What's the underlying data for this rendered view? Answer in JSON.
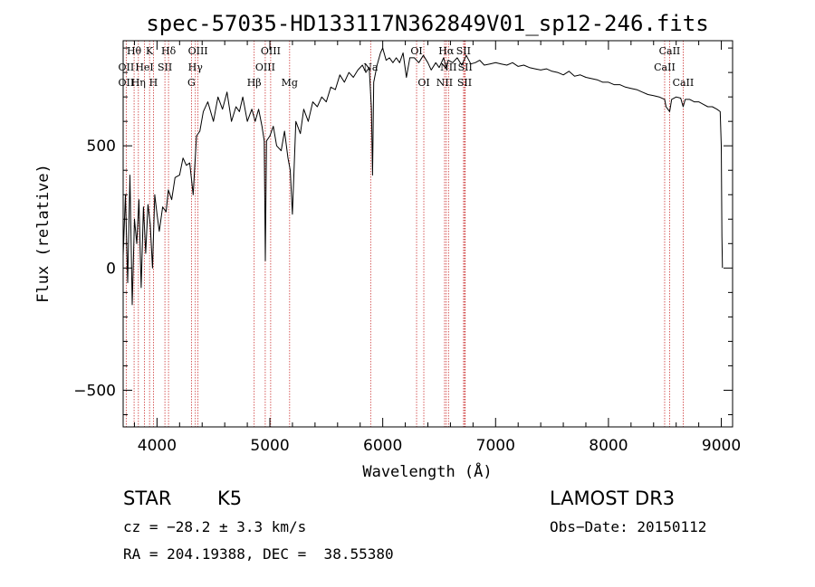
{
  "chart_data": {
    "type": "line",
    "title": "spec-57035-HD133117N362849V01_sp12-246.fits",
    "xlabel": "Wavelength (Å)",
    "ylabel": "Flux (relative)",
    "xlim": [
      3700,
      9100
    ],
    "ylim": [
      -650,
      930
    ],
    "xticks": [
      4000,
      5000,
      6000,
      7000,
      8000,
      9000
    ],
    "yticks": [
      -500,
      0,
      500
    ],
    "x_tick_labels": [
      "4000",
      "5000",
      "6000",
      "7000",
      "8000",
      "9000"
    ],
    "y_tick_labels": [
      "−500",
      "0",
      "500"
    ],
    "series": [
      {
        "name": "flux",
        "points": [
          [
            3700,
            50
          ],
          [
            3720,
            300
          ],
          [
            3740,
            -60
          ],
          [
            3760,
            380
          ],
          [
            3780,
            -150
          ],
          [
            3800,
            200
          ],
          [
            3820,
            100
          ],
          [
            3840,
            280
          ],
          [
            3860,
            -80
          ],
          [
            3880,
            250
          ],
          [
            3900,
            60
          ],
          [
            3920,
            260
          ],
          [
            3940,
            180
          ],
          [
            3960,
            0
          ],
          [
            3980,
            300
          ],
          [
            4000,
            220
          ],
          [
            4020,
            150
          ],
          [
            4050,
            250
          ],
          [
            4080,
            230
          ],
          [
            4100,
            320
          ],
          [
            4130,
            280
          ],
          [
            4160,
            370
          ],
          [
            4200,
            380
          ],
          [
            4230,
            450
          ],
          [
            4260,
            420
          ],
          [
            4290,
            430
          ],
          [
            4320,
            300
          ],
          [
            4350,
            540
          ],
          [
            4380,
            560
          ],
          [
            4410,
            640
          ],
          [
            4450,
            680
          ],
          [
            4500,
            600
          ],
          [
            4540,
            700
          ],
          [
            4580,
            650
          ],
          [
            4620,
            720
          ],
          [
            4660,
            600
          ],
          [
            4700,
            660
          ],
          [
            4730,
            640
          ],
          [
            4760,
            700
          ],
          [
            4800,
            600
          ],
          [
            4840,
            650
          ],
          [
            4870,
            600
          ],
          [
            4900,
            650
          ],
          [
            4930,
            580
          ],
          [
            4950,
            520
          ],
          [
            4960,
            30
          ],
          [
            4970,
            520
          ],
          [
            5000,
            540
          ],
          [
            5030,
            580
          ],
          [
            5060,
            500
          ],
          [
            5100,
            480
          ],
          [
            5130,
            560
          ],
          [
            5160,
            450
          ],
          [
            5180,
            400
          ],
          [
            5200,
            220
          ],
          [
            5230,
            600
          ],
          [
            5270,
            550
          ],
          [
            5300,
            650
          ],
          [
            5340,
            600
          ],
          [
            5380,
            680
          ],
          [
            5420,
            660
          ],
          [
            5460,
            700
          ],
          [
            5500,
            680
          ],
          [
            5540,
            740
          ],
          [
            5580,
            730
          ],
          [
            5620,
            790
          ],
          [
            5660,
            760
          ],
          [
            5700,
            800
          ],
          [
            5740,
            780
          ],
          [
            5780,
            810
          ],
          [
            5820,
            830
          ],
          [
            5850,
            800
          ],
          [
            5880,
            820
          ],
          [
            5900,
            650
          ],
          [
            5910,
            380
          ],
          [
            5920,
            760
          ],
          [
            5950,
            830
          ],
          [
            5980,
            880
          ],
          [
            6000,
            900
          ],
          [
            6030,
            850
          ],
          [
            6060,
            860
          ],
          [
            6090,
            840
          ],
          [
            6120,
            860
          ],
          [
            6150,
            840
          ],
          [
            6180,
            880
          ],
          [
            6210,
            780
          ],
          [
            6240,
            860
          ],
          [
            6280,
            860
          ],
          [
            6320,
            840
          ],
          [
            6360,
            870
          ],
          [
            6400,
            840
          ],
          [
            6430,
            810
          ],
          [
            6470,
            840
          ],
          [
            6500,
            820
          ],
          [
            6540,
            860
          ],
          [
            6562,
            820
          ],
          [
            6580,
            850
          ],
          [
            6620,
            840
          ],
          [
            6660,
            860
          ],
          [
            6700,
            830
          ],
          [
            6740,
            870
          ],
          [
            6780,
            835
          ],
          [
            6820,
            840
          ],
          [
            6860,
            850
          ],
          [
            6900,
            830
          ],
          [
            6950,
            835
          ],
          [
            7000,
            840
          ],
          [
            7050,
            835
          ],
          [
            7100,
            830
          ],
          [
            7150,
            840
          ],
          [
            7200,
            825
          ],
          [
            7250,
            830
          ],
          [
            7300,
            820
          ],
          [
            7350,
            815
          ],
          [
            7400,
            810
          ],
          [
            7450,
            815
          ],
          [
            7500,
            805
          ],
          [
            7550,
            800
          ],
          [
            7600,
            790
          ],
          [
            7650,
            805
          ],
          [
            7700,
            785
          ],
          [
            7750,
            790
          ],
          [
            7800,
            780
          ],
          [
            7850,
            775
          ],
          [
            7900,
            770
          ],
          [
            7950,
            760
          ],
          [
            8000,
            760
          ],
          [
            8050,
            750
          ],
          [
            8100,
            750
          ],
          [
            8150,
            740
          ],
          [
            8200,
            735
          ],
          [
            8250,
            730
          ],
          [
            8300,
            720
          ],
          [
            8350,
            710
          ],
          [
            8400,
            705
          ],
          [
            8450,
            700
          ],
          [
            8498,
            690
          ],
          [
            8510,
            660
          ],
          [
            8542,
            640
          ],
          [
            8560,
            690
          ],
          [
            8600,
            700
          ],
          [
            8640,
            695
          ],
          [
            8662,
            660
          ],
          [
            8680,
            690
          ],
          [
            8720,
            690
          ],
          [
            8760,
            680
          ],
          [
            8800,
            680
          ],
          [
            8840,
            670
          ],
          [
            8880,
            660
          ],
          [
            8920,
            660
          ],
          [
            8960,
            650
          ],
          [
            8990,
            640
          ],
          [
            9000,
            500
          ],
          [
            9005,
            130
          ],
          [
            9010,
            0
          ]
        ]
      }
    ],
    "spectral_lines": [
      {
        "label": "Hθ",
        "x": 3797,
        "row": 0
      },
      {
        "label": "OII",
        "x": 3727,
        "row": 1
      },
      {
        "label": "OII",
        "x": 3727,
        "row": 2
      },
      {
        "label": "K",
        "x": 3934,
        "row": 0
      },
      {
        "label": "HeI",
        "x": 3889,
        "row": 1
      },
      {
        "label": "Hη",
        "x": 3835,
        "row": 2
      },
      {
        "label": "H",
        "x": 3968,
        "row": 2
      },
      {
        "label": "Hδ",
        "x": 4102,
        "row": 0
      },
      {
        "label": "SII",
        "x": 4070,
        "row": 1
      },
      {
        "label": "OIII",
        "x": 4363,
        "row": 0
      },
      {
        "label": "Hγ",
        "x": 4340,
        "row": 1
      },
      {
        "label": "G",
        "x": 4305,
        "row": 2
      },
      {
        "label": "OIII",
        "x": 5007,
        "row": 0
      },
      {
        "label": "OIII",
        "x": 4959,
        "row": 1
      },
      {
        "label": "Hβ",
        "x": 4861,
        "row": 2
      },
      {
        "label": "Mg",
        "x": 5175,
        "row": 2
      },
      {
        "label": "Na",
        "x": 5893,
        "row": 1
      },
      {
        "label": "OI",
        "x": 6300,
        "row": 0
      },
      {
        "label": "OI",
        "x": 6364,
        "row": 2
      },
      {
        "label": "Hα",
        "x": 6563,
        "row": 0
      },
      {
        "label": "NII",
        "x": 6583,
        "row": 1
      },
      {
        "label": "NII",
        "x": 6548,
        "row": 2
      },
      {
        "label": "SII",
        "x": 6716,
        "row": 0
      },
      {
        "label": "SII",
        "x": 6731,
        "row": 1
      },
      {
        "label": "SII",
        "x": 6725,
        "row": 2
      },
      {
        "label": "CaII",
        "x": 8542,
        "row": 0
      },
      {
        "label": "CaII",
        "x": 8498,
        "row": 1
      },
      {
        "label": "CaII",
        "x": 8662,
        "row": 2
      }
    ],
    "legend": ""
  },
  "info": {
    "object_type": "STAR",
    "subclass": "K5",
    "survey": "LAMOST DR3",
    "cz": "cz = −28.2 ± 3.3 km/s",
    "obs_date": "Obs−Date: 20150112",
    "coords": "RA = 204.19388, DEC =  38.55380"
  },
  "colors": {
    "axis": "#000000",
    "spectrum": "#000000",
    "line_marker": "#cc3333"
  }
}
